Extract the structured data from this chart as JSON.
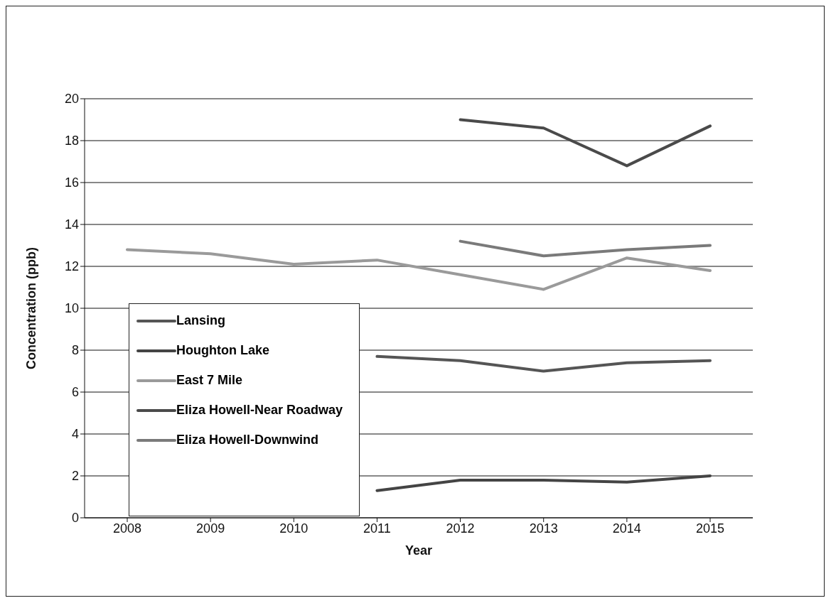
{
  "chart_data": {
    "type": "line",
    "xlabel": "Year",
    "ylabel": "Concentration (ppb)",
    "categories": [
      "2008",
      "2009",
      "2010",
      "2011",
      "2012",
      "2013",
      "2014",
      "2015"
    ],
    "series": [
      {
        "name": "Lansing",
        "color": "#555555",
        "values": [
          null,
          null,
          null,
          7.7,
          7.5,
          7.0,
          7.4,
          7.5
        ]
      },
      {
        "name": "Houghton Lake",
        "color": "#444444",
        "values": [
          null,
          null,
          null,
          1.3,
          1.8,
          1.8,
          1.7,
          2.0
        ]
      },
      {
        "name": "East 7 Mile",
        "color": "#9a9a9a",
        "values": [
          12.8,
          12.6,
          12.1,
          12.3,
          11.6,
          10.9,
          12.4,
          11.8
        ]
      },
      {
        "name": "Eliza Howell-Near Roadway",
        "color": "#4a4a4a",
        "values": [
          null,
          null,
          null,
          null,
          19.0,
          18.6,
          16.8,
          18.7
        ]
      },
      {
        "name": "Eliza Howell-Downwind",
        "color": "#7a7a7a",
        "values": [
          null,
          null,
          null,
          null,
          13.2,
          12.5,
          12.8,
          13.0
        ]
      }
    ],
    "ylim": [
      0,
      20
    ],
    "yticks": [
      0,
      2,
      4,
      6,
      8,
      10,
      12,
      14,
      16,
      18,
      20
    ],
    "grid": "y",
    "legend": "bottom left",
    "marker": "none",
    "line_style": "solid"
  }
}
